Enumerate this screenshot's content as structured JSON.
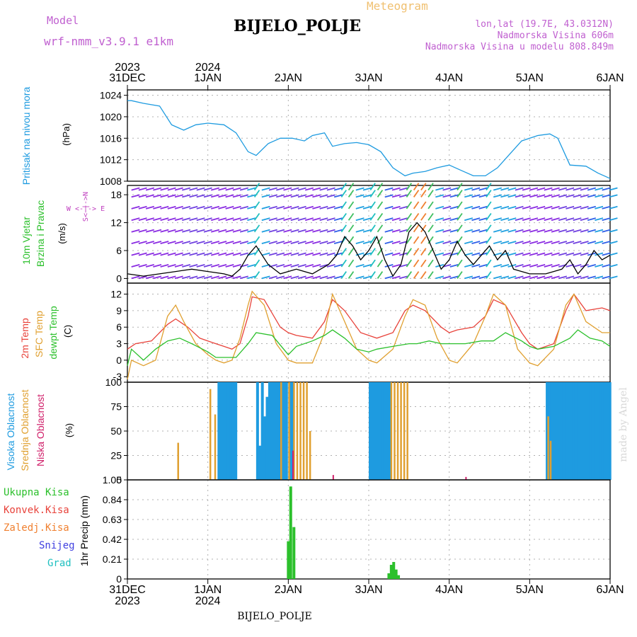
{
  "header": {
    "model_label": "Model",
    "model_name": "wrf-nmm_v3.9.1 e1km",
    "station": "BIJELO_POLJE",
    "meteogram": "Meteogram",
    "lonlat": "lon,lat (19.7E, 43.0312N)",
    "elevation": "Nadmorska Visina 606m",
    "model_elevation": "Nadmorska Visina u modelu 808.849m",
    "footer_station": "BIJELO_POLJE",
    "watermark": "made by Angel"
  },
  "colors": {
    "pressure": "#1e9be0",
    "temp2m": "#e8423a",
    "sfc": "#e0a030",
    "dewpt": "#2cc02c",
    "high_cloud": "#1e9be0",
    "mid_cloud": "#e0a030",
    "low_cloud": "#d0206a",
    "precip_total": "#2cc02c",
    "wind_label": "#c040c0"
  },
  "time_axis": {
    "ticks": [
      {
        "day": "31DEC",
        "year": "2023"
      },
      {
        "day": "1JAN",
        "year": "2024"
      },
      {
        "day": "2JAN",
        "year": ""
      },
      {
        "day": "3JAN",
        "year": ""
      },
      {
        "day": "4JAN",
        "year": ""
      },
      {
        "day": "5JAN",
        "year": ""
      },
      {
        "day": "6JAN",
        "year": ""
      }
    ]
  },
  "panels": {
    "pressure": {
      "ylabel": "Pritisak na nivou mora",
      "unit": "(hPa)",
      "yticks": [
        "1024",
        "1020",
        "1016",
        "1012",
        "1008"
      ]
    },
    "wind": {
      "ylabel1": "10m Vjetar",
      "ylabel2": "Brzina i Pravac",
      "unit": "(m/s)",
      "yticks": [
        "18",
        "12",
        "6",
        "0"
      ],
      "compass": "W <-|-> E",
      "compass_v": "S<-|->N"
    },
    "temp": {
      "label1": "2m Temp",
      "label2": "SFC Temp",
      "label3": "dewpt Temp",
      "unit": "(C)",
      "yticks": [
        "12",
        "9",
        "6",
        "3",
        "0",
        "-3"
      ]
    },
    "cloud": {
      "label1": "Visoka Oblacnost",
      "label2": "Srednja Oblacnost",
      "label3": "Niska Oblacnost",
      "unit": "(%)",
      "yticks": [
        "100",
        "75",
        "50",
        "25",
        "0"
      ]
    },
    "precip": {
      "ylabel": "1hr Precip (mm)",
      "yticks": [
        "1.05",
        "0.84",
        "0.63",
        "0.42",
        "0.21",
        "0"
      ],
      "legend": [
        "Ukupna Kisa",
        "Konvek.Kisa",
        "Zaledj.Kisa",
        "Snijeg",
        "Grad"
      ],
      "legend_colors": [
        "#2cc02c",
        "#e8423a",
        "#f08030",
        "#4040e0",
        "#20c0c0"
      ]
    }
  },
  "chart_data": [
    {
      "type": "line",
      "title": "",
      "ylabel": "Pritisak na nivou mora (hPa)",
      "ylim": [
        1008,
        1025
      ],
      "x_unit": "days since 31DEC 00UTC",
      "series": [
        {
          "x": [
            0,
            0.05,
            0.2,
            0.4,
            0.55,
            0.7,
            0.85,
            1.0,
            1.2,
            1.35,
            1.5,
            1.6,
            1.75,
            1.9,
            2.05,
            2.2,
            2.3,
            2.45,
            2.55,
            2.7,
            2.85,
            3.0,
            3.15,
            3.3,
            3.45,
            3.55,
            3.7,
            3.85,
            4.0,
            4.15,
            4.3,
            4.45,
            4.6,
            4.75,
            4.9,
            5.1,
            5.25,
            5.35,
            5.5,
            5.7,
            5.85,
            6.0
          ],
          "values": [
            1023,
            1023,
            1022.5,
            1022,
            1018.5,
            1017.5,
            1018.5,
            1018.8,
            1018.5,
            1017,
            1013.5,
            1012.8,
            1015,
            1016,
            1016,
            1015.5,
            1016.5,
            1017,
            1014.5,
            1015,
            1015.2,
            1014.8,
            1013.5,
            1010.5,
            1009,
            1009.5,
            1009.8,
            1010.5,
            1011,
            1010,
            1009,
            1009,
            1010.5,
            1013,
            1015.5,
            1016.5,
            1016.8,
            1016,
            1011,
            1010.8,
            1009.5,
            1008.5
          ]
        }
      ]
    },
    {
      "type": "line",
      "title": "",
      "ylabel": "10m Vjetar Brzina i Pravac (m/s)",
      "ylim": [
        -1,
        20
      ],
      "x_unit": "days since 31DEC 00UTC",
      "series": [
        {
          "name": "speed",
          "x": [
            0,
            0.2,
            0.4,
            0.6,
            0.8,
            1.0,
            1.2,
            1.3,
            1.4,
            1.5,
            1.6,
            1.75,
            1.9,
            2.1,
            2.3,
            2.5,
            2.6,
            2.7,
            2.8,
            2.9,
            3.0,
            3.1,
            3.2,
            3.3,
            3.4,
            3.5,
            3.6,
            3.7,
            3.8,
            3.9,
            4.0,
            4.1,
            4.2,
            4.3,
            4.4,
            4.5,
            4.6,
            4.7,
            4.8,
            5.0,
            5.2,
            5.4,
            5.5,
            5.6,
            5.7,
            5.8,
            5.9,
            6.0
          ],
          "values": [
            1,
            0.5,
            1,
            1.5,
            2,
            1.5,
            1,
            0.5,
            2,
            5,
            7,
            3,
            1,
            2,
            1,
            3,
            5,
            9,
            7,
            4,
            6,
            9,
            4,
            0.5,
            3,
            10,
            12,
            10,
            6,
            2,
            4,
            8,
            5,
            3,
            5,
            7,
            4,
            6,
            2,
            1,
            1,
            2,
            4,
            1,
            3,
            6,
            4,
            5
          ]
        }
      ]
    },
    {
      "type": "line",
      "title": "",
      "ylabel": "(C)",
      "ylim": [
        -4,
        14
      ],
      "x_unit": "days since 31DEC 00UTC",
      "series": [
        {
          "name": "2m Temp",
          "x": [
            0,
            0.1,
            0.3,
            0.5,
            0.6,
            0.75,
            0.9,
            1.0,
            1.1,
            1.2,
            1.3,
            1.4,
            1.5,
            1.55,
            1.7,
            1.9,
            2.0,
            2.1,
            2.3,
            2.45,
            2.55,
            2.7,
            2.9,
            3.0,
            3.1,
            3.3,
            3.45,
            3.55,
            3.7,
            3.9,
            4.0,
            4.1,
            4.3,
            4.45,
            4.55,
            4.7,
            4.9,
            5.0,
            5.1,
            5.3,
            5.45,
            5.55,
            5.7,
            5.9,
            6.0
          ],
          "values": [
            2,
            3,
            3.5,
            6.5,
            7.5,
            6,
            4,
            3.5,
            3,
            2.5,
            2,
            3,
            8,
            11.5,
            11,
            6,
            5,
            4.5,
            4,
            7,
            11,
            9,
            5,
            4.5,
            4,
            5,
            9,
            10,
            9,
            6,
            5,
            5.5,
            6,
            8,
            11,
            10,
            5,
            3,
            2,
            3,
            9,
            12,
            9,
            9.5,
            9
          ]
        },
        {
          "name": "SFC Temp",
          "x": [
            0,
            0.05,
            0.2,
            0.35,
            0.5,
            0.6,
            0.7,
            0.85,
            1.0,
            1.1,
            1.2,
            1.3,
            1.4,
            1.5,
            1.55,
            1.7,
            1.85,
            2.0,
            2.1,
            2.3,
            2.45,
            2.55,
            2.7,
            2.85,
            3.0,
            3.1,
            3.3,
            3.45,
            3.55,
            3.7,
            3.85,
            4.0,
            4.1,
            4.3,
            4.45,
            4.55,
            4.7,
            4.85,
            5.0,
            5.1,
            5.3,
            5.45,
            5.55,
            5.7,
            5.9,
            6.0
          ],
          "values": [
            -3.5,
            0,
            -1,
            0,
            8,
            10,
            7,
            3,
            1,
            0,
            -0.5,
            0,
            4,
            10,
            12.5,
            10,
            3,
            0,
            -0.5,
            -0.5,
            5,
            12,
            7,
            2,
            0,
            -0.5,
            2,
            8,
            11,
            10,
            4,
            0,
            -0.5,
            3,
            8,
            12,
            10,
            2,
            -0.5,
            -1,
            2,
            10,
            12,
            7,
            5,
            5
          ]
        },
        {
          "name": "dewpt Temp",
          "x": [
            0,
            0.05,
            0.2,
            0.35,
            0.5,
            0.65,
            0.8,
            1.0,
            1.1,
            1.2,
            1.35,
            1.5,
            1.6,
            1.8,
            2.0,
            2.1,
            2.3,
            2.45,
            2.55,
            2.7,
            2.85,
            3.0,
            3.1,
            3.3,
            3.5,
            3.6,
            3.75,
            3.9,
            4.0,
            4.2,
            4.4,
            4.55,
            4.7,
            4.9,
            5.0,
            5.1,
            5.3,
            5.5,
            5.6,
            5.75,
            5.9,
            6.0
          ],
          "values": [
            -1,
            2,
            0,
            2,
            3.5,
            4,
            3,
            1.5,
            0.5,
            0.5,
            0.5,
            3,
            5,
            4.5,
            1,
            2.5,
            3.5,
            4.5,
            5.5,
            4,
            2,
            1.5,
            2,
            2.5,
            3,
            3,
            3.5,
            3,
            3,
            3,
            3.5,
            3.5,
            5,
            3.5,
            2.5,
            2,
            2.5,
            4,
            5.5,
            4,
            3.5,
            2.5
          ]
        }
      ]
    },
    {
      "type": "bar",
      "title": "",
      "ylabel": "Oblacnost (%)",
      "ylim": [
        0,
        100
      ],
      "x_unit": "days since 31DEC 00UTC",
      "series": [
        {
          "name": "Visoka Oblacnost",
          "x": [
            1.12,
            1.15,
            1.18,
            1.21,
            1.24,
            1.27,
            1.3,
            1.33,
            1.6,
            1.63,
            1.66,
            1.69,
            1.72,
            1.75,
            1.78,
            1.81,
            1.84,
            1.87,
            1.9,
            1.93,
            1.96,
            2.0,
            2.03,
            3.0,
            3.03,
            3.06,
            3.09,
            3.12,
            3.15,
            3.18,
            3.21,
            3.24,
            5.2,
            5.23,
            5.26,
            5.29,
            5.32,
            5.35,
            5.38,
            5.41,
            5.44,
            5.47,
            5.5,
            5.53,
            5.56,
            5.59,
            5.62,
            5.65,
            5.68,
            5.71,
            5.74,
            5.77,
            5.8,
            5.83,
            5.86,
            5.89,
            5.92,
            5.95,
            5.98
          ],
          "values": [
            100,
            100,
            100,
            100,
            100,
            100,
            100,
            100,
            100,
            35,
            100,
            65,
            85,
            100,
            100,
            100,
            100,
            100,
            100,
            100,
            100,
            100,
            100,
            100,
            100,
            100,
            100,
            100,
            100,
            100,
            100,
            100,
            100,
            100,
            100,
            100,
            100,
            100,
            100,
            100,
            100,
            100,
            100,
            100,
            100,
            100,
            100,
            100,
            100,
            100,
            100,
            100,
            100,
            100,
            100,
            100,
            100,
            100,
            100
          ]
        },
        {
          "name": "Srednja Oblacnost",
          "x": [
            0.62,
            1.02,
            1.08,
            1.9,
            2.0,
            2.06,
            2.1,
            2.14,
            2.18,
            2.22,
            2.26,
            3.27,
            3.31,
            3.35,
            3.39,
            3.43,
            3.47,
            5.22,
            5.25
          ],
          "values": [
            38,
            93,
            67,
            100,
            100,
            100,
            100,
            100,
            100,
            100,
            50,
            100,
            100,
            100,
            100,
            100,
            100,
            65,
            40
          ]
        },
        {
          "name": "Niska Oblacnost",
          "x": [
            2.05,
            2.55,
            4.2
          ],
          "values": [
            30,
            5,
            3
          ]
        }
      ]
    },
    {
      "type": "bar",
      "title": "",
      "ylabel": "1hr Precip (mm)",
      "ylim": [
        0,
        1.05
      ],
      "x_unit": "days since 31DEC 00UTC",
      "series": [
        {
          "name": "Ukupna Kisa",
          "x": [
            2.0,
            2.03,
            2.07,
            3.25,
            3.28,
            3.31,
            3.34,
            3.37
          ],
          "values": [
            0.4,
            0.98,
            0.55,
            0.06,
            0.15,
            0.18,
            0.1,
            0.04
          ]
        }
      ]
    }
  ]
}
